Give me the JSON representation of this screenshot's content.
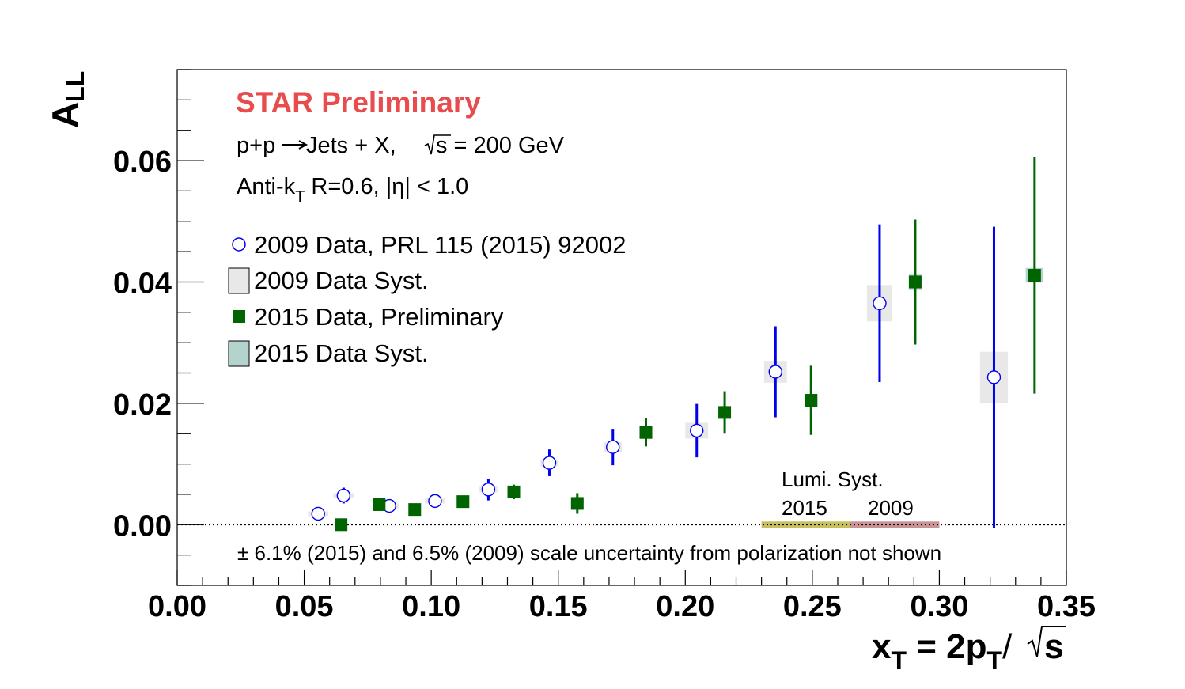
{
  "chart_data": {
    "type": "scatter",
    "x_axis": {
      "label_main": "x",
      "label_sub": "T",
      "label_eq": " = 2p",
      "label_sub2": "T",
      "label_slash": "/",
      "label_s": "s",
      "range": [
        0.0,
        0.35
      ],
      "ticks": [
        "0.00",
        "0.05",
        "0.10",
        "0.15",
        "0.20",
        "0.25",
        "0.30",
        "0.35"
      ]
    },
    "y_axis": {
      "label_main": "A",
      "label_sub": "LL",
      "range": [
        -0.01,
        0.075
      ],
      "ticks": [
        "0.00",
        "0.02",
        "0.04",
        "0.06"
      ]
    },
    "annotations": {
      "star": "STAR Preliminary",
      "line1_a": "p+p",
      "line1_b": " Jets + X, ",
      "line1_c": "s = 200 GeV",
      "line2_a": "Anti-k",
      "line2_sub": "T",
      "line2_b": " R=0.6, |",
      "line2_eta": "η",
      "line2_c": "| < 1.0",
      "lumi_title": "Lumi. Syst.",
      "lumi_2015": "2015",
      "lumi_2009": "2009",
      "scale_note": "± 6.1% (2015) and 6.5% (2009) scale uncertainty from polarization not shown"
    },
    "legend": [
      "2009 Data, PRL 115 (2015) 92002",
      "2009 Data Syst.",
      "2015 Data, Preliminary",
      "2015 Data Syst."
    ],
    "series": [
      {
        "name": "2009 Data, PRL 115 (2015) 92002",
        "marker": "open-circle",
        "color": "#0000ee",
        "syst_color": "#e8e8e8",
        "points": [
          {
            "x": 0.0555,
            "y": 0.0018,
            "err": 0.0011,
            "syst": 0.0004,
            "sx": 0.008
          },
          {
            "x": 0.0655,
            "y": 0.0048,
            "err": 0.0013,
            "syst": 0.0004,
            "sx": 0.008
          },
          {
            "x": 0.0835,
            "y": 0.0031,
            "err": 0.0011,
            "syst": 0.0004,
            "sx": 0.008
          },
          {
            "x": 0.1015,
            "y": 0.0039,
            "err": 0.0011,
            "syst": 0.0004,
            "sx": 0.008
          },
          {
            "x": 0.1225,
            "y": 0.0058,
            "err": 0.0018,
            "syst": 0.0005,
            "sx": 0.007
          },
          {
            "x": 0.1465,
            "y": 0.0102,
            "err": 0.0022,
            "syst": 0.0006,
            "sx": 0.007
          },
          {
            "x": 0.1715,
            "y": 0.0128,
            "err": 0.003,
            "syst": 0.0008,
            "sx": 0.007
          },
          {
            "x": 0.2045,
            "y": 0.0155,
            "err": 0.0044,
            "syst": 0.0013,
            "sx": 0.009
          },
          {
            "x": 0.2355,
            "y": 0.0252,
            "err": 0.0075,
            "syst": 0.0018,
            "sx": 0.009
          },
          {
            "x": 0.2765,
            "y": 0.0365,
            "err": 0.013,
            "syst": 0.003,
            "sx": 0.01
          },
          {
            "x": 0.3215,
            "y": 0.0243,
            "err": 0.0248,
            "syst": 0.0042,
            "sx": 0.011
          }
        ]
      },
      {
        "name": "2015 Data, Preliminary",
        "marker": "filled-square",
        "color": "#006400",
        "syst_color": "#b3d4cc",
        "points": [
          {
            "x": 0.0645,
            "y": 0.0,
            "err": 0.0005,
            "syst": 0.0004,
            "sx": 0.0035
          },
          {
            "x": 0.0795,
            "y": 0.0033,
            "err": 0.0008,
            "syst": 0.0006,
            "sx": 0.0035
          },
          {
            "x": 0.0935,
            "y": 0.0025,
            "err": 0.0007,
            "syst": 0.0005,
            "sx": 0.0035
          },
          {
            "x": 0.1125,
            "y": 0.0038,
            "err": 0.0008,
            "syst": 0.0005,
            "sx": 0.0035
          },
          {
            "x": 0.1325,
            "y": 0.0054,
            "err": 0.0012,
            "syst": 0.0008,
            "sx": 0.0035
          },
          {
            "x": 0.1575,
            "y": 0.0035,
            "err": 0.0017,
            "syst": 0.0008,
            "sx": 0.0035
          },
          {
            "x": 0.1845,
            "y": 0.0152,
            "err": 0.0023,
            "syst": 0.0008,
            "sx": 0.0035
          },
          {
            "x": 0.2155,
            "y": 0.0185,
            "err": 0.0035,
            "syst": 0.001,
            "sx": 0.004
          },
          {
            "x": 0.2495,
            "y": 0.0205,
            "err": 0.0057,
            "syst": 0.001,
            "sx": 0.005
          },
          {
            "x": 0.2905,
            "y": 0.04,
            "err": 0.0103,
            "syst": 0.0012,
            "sx": 0.005
          },
          {
            "x": 0.3375,
            "y": 0.0411,
            "err": 0.0195,
            "syst": 0.0012,
            "sx": 0.007
          }
        ]
      }
    ],
    "lumi_bands": [
      {
        "label": "2015",
        "x_from": 0.23,
        "x_to": 0.265,
        "color": "#c8c060"
      },
      {
        "label": "2009",
        "x_from": 0.265,
        "x_to": 0.3,
        "color": "#c89494"
      }
    ],
    "colors": {
      "star_red": "#e84c4c",
      "frame": "#000000"
    }
  }
}
